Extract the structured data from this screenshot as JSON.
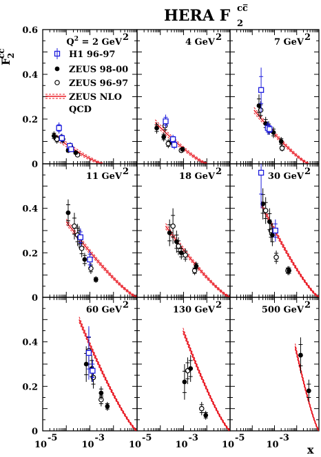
{
  "chart_data": {
    "type": "scatter",
    "title": "HERA F",
    "title_sub": "2",
    "title_sup": "cc̅",
    "ylabel": "F",
    "ylabel_sub": "2",
    "ylabel_sup": "cc̅",
    "xlabel": "x",
    "x_scale": "log",
    "xlim": [
      1e-05,
      0.1
    ],
    "ylim": [
      0,
      0.6
    ],
    "y_ticks": [
      "0",
      "0.2",
      "0.4",
      "0.6"
    ],
    "x_ticks": [
      {
        "base": "10",
        "exp": "-5"
      },
      {
        "base": "10",
        "exp": "-3"
      }
    ],
    "grid": false,
    "layout": "3x3 panels",
    "legend": {
      "placement": "top-left panel",
      "entries": [
        {
          "key": "h1",
          "label": "H1 96-97",
          "marker": "open-square",
          "color": "#1a1adc"
        },
        {
          "key": "zeus9800",
          "label": "ZEUS 98-00",
          "marker": "filled-circle",
          "color": "#000000"
        },
        {
          "key": "zeus9697",
          "label": "ZEUS 96-97",
          "marker": "open-circle",
          "color": "#000000"
        },
        {
          "key": "nlo",
          "label": "ZEUS NLO",
          "label2": "QCD",
          "marker": "band",
          "color": "#e8141e"
        }
      ]
    },
    "colors": {
      "h1": "#1a1adc",
      "zeus": "#000000",
      "nlo": "#e8141e"
    },
    "panels": [
      {
        "q2_value": "2",
        "q2_unit": "GeV",
        "q2_prefix": "Q",
        "nlo": {
          "x_start": 3e-05,
          "y_start": 0.125,
          "x_end": 0.0035,
          "y_end": 0.0
        },
        "h1": [
          [
            4.9e-05,
            0.16,
            0.025
          ],
          [
            6.5e-05,
            0.115,
            0.02
          ],
          [
            0.00014,
            0.08,
            0.015
          ],
          [
            0.00016,
            0.065,
            0.012
          ]
        ],
        "zeus9800": [
          [
            3e-05,
            0.125,
            0.02
          ],
          [
            6e-05,
            0.115,
            0.018
          ],
          [
            0.00012,
            0.06,
            0.012
          ],
          [
            0.00025,
            0.05,
            0.01
          ]
        ],
        "zeus9697": [
          [
            4e-05,
            0.11,
            0.02
          ],
          [
            7e-05,
            0.11,
            0.02
          ],
          [
            0.00015,
            0.08,
            0.015
          ],
          [
            0.0003,
            0.04,
            0.01
          ]
        ]
      },
      {
        "q2_value": "4",
        "q2_unit": "GeV",
        "nlo": {
          "x_start": 6e-05,
          "y_start": 0.185,
          "x_end": 0.01,
          "y_end": 0.0
        },
        "h1": [
          [
            0.00017,
            0.19,
            0.03
          ],
          [
            0.00035,
            0.11,
            0.02
          ],
          [
            0.0004,
            0.085,
            0.02
          ]
        ],
        "zeus9800": [
          [
            7e-05,
            0.16,
            0.025
          ],
          [
            0.00014,
            0.12,
            0.02
          ],
          [
            0.0003,
            0.1,
            0.018
          ],
          [
            0.0009,
            0.065,
            0.012
          ]
        ],
        "zeus9697": [
          [
            0.00016,
            0.17,
            0.03
          ],
          [
            0.00022,
            0.09,
            0.02
          ],
          [
            0.0008,
            0.06,
            0.012
          ]
        ]
      },
      {
        "q2_value": "7",
        "q2_unit": "GeV",
        "nlo": {
          "x_start": 0.00012,
          "y_start": 0.24,
          "x_end": 0.035,
          "y_end": 0.0
        },
        "h1": [
          [
            0.00025,
            0.33,
            0.1
          ],
          [
            0.0005,
            0.16,
            0.03
          ],
          [
            0.0006,
            0.155,
            0.025
          ]
        ],
        "zeus9800": [
          [
            0.0002,
            0.26,
            0.05
          ],
          [
            0.0004,
            0.18,
            0.03
          ],
          [
            0.0009,
            0.14,
            0.025
          ],
          [
            0.002,
            0.1,
            0.02
          ]
        ],
        "zeus9697": [
          [
            0.00024,
            0.24,
            0.04
          ],
          [
            0.00055,
            0.16,
            0.03
          ],
          [
            0.0022,
            0.07,
            0.015
          ]
        ]
      },
      {
        "q2_value": "11",
        "q2_unit": "GeV",
        "nlo": {
          "x_start": 0.0001,
          "y_start": 0.34,
          "x_end": 0.1,
          "y_end": 0.0
        },
        "h1": [
          [
            0.0004,
            0.27,
            0.04
          ],
          [
            0.001,
            0.17,
            0.04
          ]
        ],
        "zeus9800": [
          [
            0.00012,
            0.38,
            0.06
          ],
          [
            0.00035,
            0.27,
            0.05
          ],
          [
            0.0006,
            0.17,
            0.03
          ],
          [
            0.0018,
            0.08,
            0.015
          ]
        ],
        "zeus9697": [
          [
            0.00022,
            0.32,
            0.06
          ],
          [
            0.0003,
            0.28,
            0.05
          ],
          [
            0.00045,
            0.22,
            0.04
          ],
          [
            0.0011,
            0.13,
            0.025
          ]
        ]
      },
      {
        "q2_value": "18",
        "q2_unit": "GeV",
        "nlo": {
          "x_start": 0.00017,
          "y_start": 0.32,
          "x_end": 0.1,
          "y_end": 0.0
        },
        "h1": [],
        "zeus9800": [
          [
            0.00025,
            0.29,
            0.06
          ],
          [
            0.0005,
            0.25,
            0.05
          ],
          [
            0.0008,
            0.2,
            0.03
          ],
          [
            0.0035,
            0.14,
            0.02
          ]
        ],
        "zeus9697": [
          [
            0.00035,
            0.32,
            0.08
          ],
          [
            0.0006,
            0.23,
            0.04
          ],
          [
            0.0012,
            0.19,
            0.03
          ],
          [
            0.003,
            0.12,
            0.02
          ]
        ]
      },
      {
        "q2_value": "30",
        "q2_unit": "GeV",
        "nlo": {
          "x_start": 0.00025,
          "y_start": 0.42,
          "x_end": 0.1,
          "y_end": 0.0
        },
        "h1": [
          [
            0.00025,
            0.56,
            0.16
          ],
          [
            0.0011,
            0.3,
            0.05
          ]
        ],
        "zeus9800": [
          [
            0.0003,
            0.42,
            0.07
          ],
          [
            0.0006,
            0.34,
            0.06
          ],
          [
            0.0008,
            0.28,
            0.05
          ],
          [
            0.0045,
            0.12,
            0.02
          ]
        ],
        "zeus9697": [
          [
            0.0004,
            0.39,
            0.06
          ],
          [
            0.0007,
            0.3,
            0.05
          ],
          [
            0.0012,
            0.18,
            0.03
          ],
          [
            0.004,
            0.12,
            0.02
          ]
        ]
      },
      {
        "q2_value": "60",
        "q2_unit": "GeV",
        "nlo": {
          "x_start": 0.00035,
          "y_start": 0.5,
          "x_end": 0.1,
          "y_end": 0.0
        },
        "h1": [
          [
            0.0009,
            0.35,
            0.12
          ],
          [
            0.0013,
            0.27,
            0.05
          ]
        ],
        "zeus9800": [
          [
            0.0007,
            0.3,
            0.08
          ],
          [
            0.0012,
            0.28,
            0.06
          ],
          [
            0.003,
            0.17,
            0.03
          ],
          [
            0.0055,
            0.11,
            0.02
          ]
        ],
        "zeus9697": [
          [
            0.0009,
            0.36,
            0.1
          ],
          [
            0.0014,
            0.24,
            0.05
          ],
          [
            0.003,
            0.14,
            0.03
          ]
        ]
      },
      {
        "q2_value": "130",
        "q2_unit": "GeV",
        "nlo": {
          "x_start": 0.00095,
          "y_start": 0.45,
          "x_end": 0.1,
          "y_end": 0.0
        },
        "h1": [],
        "zeus9800": [
          [
            0.0011,
            0.22,
            0.08
          ],
          [
            0.002,
            0.28,
            0.06
          ],
          [
            0.009,
            0.07,
            0.02
          ]
        ],
        "zeus9697": [
          [
            0.0015,
            0.27,
            0.06
          ],
          [
            0.006,
            0.1,
            0.03
          ]
        ]
      },
      {
        "q2_value": "500",
        "q2_unit": "GeV",
        "nlo": {
          "x_start": 0.0085,
          "y_start": 0.38,
          "x_end": 0.1,
          "y_end": 0.0
        },
        "h1": [],
        "zeus9800": [
          [
            0.015,
            0.34,
            0.08
          ],
          [
            0.035,
            0.18,
            0.05
          ]
        ],
        "zeus9697": []
      }
    ]
  }
}
